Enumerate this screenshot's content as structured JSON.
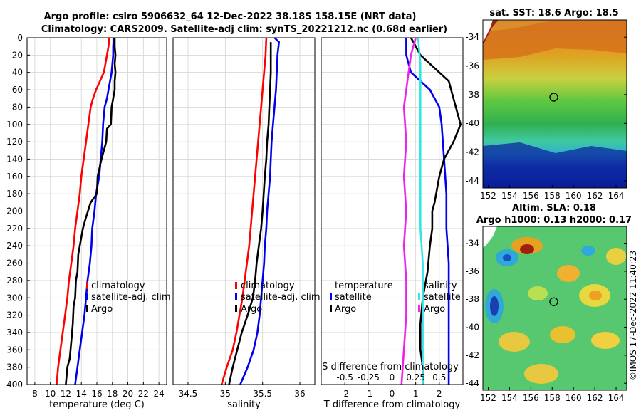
{
  "title": {
    "line1": "Argo profile: csiro 5906632_64 12-Dec-2022 38.18S 158.15E (NRT data)",
    "line2": "Climatology: CARS2009. Satellite-adj clim: synTS_20221212.nc (0.68d earlier)"
  },
  "credit": "©IMOS 17-Dec-2022 11:40:23",
  "colors": {
    "climatology": "#ff0000",
    "satellite": "#0000ee",
    "argo": "#000000",
    "salinity_diff": "#33e5e5",
    "salinity_sat": "#ee22ee"
  },
  "chart_data": [
    {
      "type": "line",
      "id": "temperature",
      "xlabel": "temperature (deg C)",
      "xlim": [
        7,
        25
      ],
      "xticks": [
        8,
        10,
        12,
        14,
        16,
        18,
        20,
        22,
        24
      ],
      "ylim": [
        0,
        400
      ],
      "yticks": [
        0,
        20,
        40,
        60,
        80,
        100,
        120,
        140,
        160,
        180,
        200,
        220,
        240,
        260,
        280,
        300,
        320,
        340,
        360,
        380,
        400
      ],
      "legend": [
        "climatology",
        "satellite-adj. clim",
        "Argo"
      ],
      "series": [
        {
          "name": "climatology",
          "points": [
            [
              17.6,
              0
            ],
            [
              17.5,
              10
            ],
            [
              17.3,
              20
            ],
            [
              17.1,
              30
            ],
            [
              16.9,
              40
            ],
            [
              16.4,
              50
            ],
            [
              15.9,
              60
            ],
            [
              15.5,
              70
            ],
            [
              15.2,
              80
            ],
            [
              14.9,
              100
            ],
            [
              14.6,
              120
            ],
            [
              14.3,
              140
            ],
            [
              14.0,
              160
            ],
            [
              13.8,
              180
            ],
            [
              13.5,
              200
            ],
            [
              13.2,
              220
            ],
            [
              13.0,
              240
            ],
            [
              12.7,
              260
            ],
            [
              12.4,
              280
            ],
            [
              12.2,
              300
            ],
            [
              11.9,
              320
            ],
            [
              11.6,
              340
            ],
            [
              11.3,
              360
            ],
            [
              11.0,
              380
            ],
            [
              10.8,
              400
            ]
          ]
        },
        {
          "name": "satellite-adj. clim",
          "points": [
            [
              18.2,
              0
            ],
            [
              18.1,
              10
            ],
            [
              18.1,
              20
            ],
            [
              18.0,
              30
            ],
            [
              17.9,
              40
            ],
            [
              17.7,
              50
            ],
            [
              17.5,
              60
            ],
            [
              17.3,
              70
            ],
            [
              17.0,
              80
            ],
            [
              16.8,
              100
            ],
            [
              16.7,
              120
            ],
            [
              16.5,
              140
            ],
            [
              16.3,
              160
            ],
            [
              15.9,
              180
            ],
            [
              15.7,
              200
            ],
            [
              15.4,
              220
            ],
            [
              15.3,
              240
            ],
            [
              15.1,
              260
            ],
            [
              14.8,
              280
            ],
            [
              14.6,
              300
            ],
            [
              14.4,
              320
            ],
            [
              14.1,
              340
            ],
            [
              13.8,
              360
            ],
            [
              13.5,
              380
            ],
            [
              13.2,
              400
            ]
          ]
        },
        {
          "name": "Argo",
          "points": [
            [
              18.3,
              0
            ],
            [
              18.3,
              10
            ],
            [
              18.4,
              20
            ],
            [
              18.3,
              30
            ],
            [
              18.4,
              40
            ],
            [
              18.3,
              50
            ],
            [
              18.3,
              60
            ],
            [
              18.1,
              70
            ],
            [
              17.9,
              80
            ],
            [
              17.8,
              100
            ],
            [
              17.3,
              105
            ],
            [
              17.2,
              120
            ],
            [
              16.6,
              140
            ],
            [
              16.1,
              160
            ],
            [
              16.0,
              180
            ],
            [
              15.2,
              190
            ],
            [
              14.5,
              210
            ],
            [
              14.2,
              220
            ],
            [
              13.8,
              240
            ],
            [
              13.6,
              250
            ],
            [
              13.5,
              270
            ],
            [
              13.3,
              280
            ],
            [
              13.2,
              300
            ],
            [
              13.0,
              310
            ],
            [
              12.9,
              330
            ],
            [
              12.7,
              350
            ],
            [
              12.5,
              370
            ],
            [
              12.2,
              380
            ],
            [
              12.1,
              390
            ],
            [
              12.0,
              400
            ]
          ]
        }
      ]
    },
    {
      "type": "line",
      "id": "salinity",
      "xlabel": "salinity",
      "xlim": [
        34.3,
        36.2
      ],
      "xticks": [
        34.5,
        35,
        35.5,
        36
      ],
      "xtick_labels": [
        "34.5",
        "35",
        "35.5",
        "36"
      ],
      "ylim": [
        0,
        400
      ],
      "legend": [
        "climatology",
        "satellite-adj. clim",
        "Argo"
      ],
      "series": [
        {
          "name": "climatology",
          "points": [
            [
              35.55,
              0
            ],
            [
              35.54,
              20
            ],
            [
              35.52,
              40
            ],
            [
              35.5,
              60
            ],
            [
              35.48,
              80
            ],
            [
              35.46,
              100
            ],
            [
              35.44,
              120
            ],
            [
              35.42,
              140
            ],
            [
              35.4,
              160
            ],
            [
              35.38,
              180
            ],
            [
              35.36,
              200
            ],
            [
              35.34,
              220
            ],
            [
              35.32,
              240
            ],
            [
              35.29,
              260
            ],
            [
              35.26,
              280
            ],
            [
              35.23,
              300
            ],
            [
              35.19,
              320
            ],
            [
              35.15,
              340
            ],
            [
              35.1,
              360
            ],
            [
              35.02,
              380
            ],
            [
              34.95,
              400
            ]
          ]
        },
        {
          "name": "satellite-adj. clim",
          "points": [
            [
              35.66,
              0
            ],
            [
              35.72,
              5
            ],
            [
              35.7,
              20
            ],
            [
              35.69,
              40
            ],
            [
              35.68,
              60
            ],
            [
              35.66,
              80
            ],
            [
              35.64,
              100
            ],
            [
              35.62,
              120
            ],
            [
              35.61,
              140
            ],
            [
              35.6,
              160
            ],
            [
              35.58,
              180
            ],
            [
              35.56,
              200
            ],
            [
              35.55,
              220
            ],
            [
              35.53,
              240
            ],
            [
              35.52,
              260
            ],
            [
              35.5,
              280
            ],
            [
              35.48,
              300
            ],
            [
              35.46,
              320
            ],
            [
              35.43,
              340
            ],
            [
              35.38,
              360
            ],
            [
              35.3,
              380
            ],
            [
              35.2,
              400
            ]
          ]
        },
        {
          "name": "Argo",
          "points": [
            [
              35.61,
              5
            ],
            [
              35.61,
              20
            ],
            [
              35.61,
              40
            ],
            [
              35.6,
              60
            ],
            [
              35.59,
              80
            ],
            [
              35.58,
              100
            ],
            [
              35.56,
              120
            ],
            [
              35.55,
              140
            ],
            [
              35.53,
              160
            ],
            [
              35.5,
              200
            ],
            [
              35.48,
              220
            ],
            [
              35.45,
              240
            ],
            [
              35.42,
              260
            ],
            [
              35.4,
              280
            ],
            [
              35.37,
              300
            ],
            [
              35.3,
              320
            ],
            [
              35.22,
              340
            ],
            [
              35.16,
              360
            ],
            [
              35.1,
              380
            ],
            [
              35.05,
              400
            ]
          ]
        }
      ]
    },
    {
      "type": "line",
      "id": "difference",
      "xlabel": "T difference from climatology",
      "xlabel2": "S difference from climatology",
      "xlim": [
        -3,
        3
      ],
      "xticks": [
        -2,
        -1,
        0,
        1,
        2
      ],
      "xtick_labels": [
        "-2",
        "-1",
        "0",
        "1",
        "2"
      ],
      "sticks": [
        -0.5,
        -0.25,
        0,
        0.25,
        0.5
      ],
      "stick_labels": [
        "-0.5",
        "-0.25",
        "0",
        "0.25",
        "0.5"
      ],
      "ylim": [
        0,
        400
      ],
      "legend_t_title": "temperature",
      "legend_s_title": "salinity",
      "legend_t": [
        "satellite",
        "Argo"
      ],
      "legend_s": [
        "satellite",
        "Argo"
      ],
      "series": [
        {
          "name": "T satellite",
          "points": [
            [
              0.6,
              0
            ],
            [
              0.6,
              20
            ],
            [
              0.8,
              40
            ],
            [
              1.6,
              60
            ],
            [
              2.0,
              80
            ],
            [
              2.1,
              100
            ],
            [
              2.2,
              140
            ],
            [
              2.3,
              180
            ],
            [
              2.3,
              220
            ],
            [
              2.4,
              260
            ],
            [
              2.4,
              300
            ],
            [
              2.4,
              340
            ],
            [
              2.4,
              380
            ],
            [
              2.4,
              400
            ]
          ]
        },
        {
          "name": "T Argo",
          "points": [
            [
              0.8,
              0
            ],
            [
              1.2,
              20
            ],
            [
              2.4,
              50
            ],
            [
              2.6,
              70
            ],
            [
              2.8,
              90
            ],
            [
              2.9,
              100
            ],
            [
              2.6,
              120
            ],
            [
              2.2,
              140
            ],
            [
              2.0,
              160
            ],
            [
              1.8,
              190
            ],
            [
              1.7,
              200
            ],
            [
              1.7,
              220
            ],
            [
              1.6,
              240
            ],
            [
              1.5,
              270
            ],
            [
              1.3,
              300
            ],
            [
              1.2,
              330
            ],
            [
              1.2,
              360
            ],
            [
              1.3,
              380
            ],
            [
              1.3,
              400
            ]
          ]
        },
        {
          "name": "S satellite",
          "points": [
            [
              1.1,
              0
            ],
            [
              1.2,
              30
            ],
            [
              1.2,
              60
            ],
            [
              1.2,
              100
            ],
            [
              1.2,
              140
            ],
            [
              1.2,
              180
            ],
            [
              1.2,
              220
            ],
            [
              1.3,
              260
            ],
            [
              1.3,
              300
            ],
            [
              1.3,
              340
            ],
            [
              1.3,
              380
            ],
            [
              1.3,
              400
            ]
          ]
        },
        {
          "name": "S Argo",
          "points": [
            [
              1.0,
              0
            ],
            [
              0.8,
              20
            ],
            [
              0.7,
              40
            ],
            [
              0.5,
              80
            ],
            [
              0.6,
              120
            ],
            [
              0.5,
              160
            ],
            [
              0.6,
              200
            ],
            [
              0.5,
              240
            ],
            [
              0.6,
              280
            ],
            [
              0.6,
              320
            ],
            [
              0.5,
              360
            ],
            [
              0.4,
              400
            ]
          ]
        }
      ]
    },
    {
      "type": "heatmap",
      "id": "sst-map",
      "title": "sat. SST: 18.6 Argo: 18.5",
      "xticks": [
        152,
        154,
        156,
        158,
        160,
        162,
        164
      ],
      "yticks": [
        -34,
        -36,
        -38,
        -40,
        -42,
        -44
      ],
      "xlim": [
        151.5,
        165
      ],
      "ylim": [
        -44.5,
        -32.8
      ],
      "marker": [
        158.15,
        -38.18
      ]
    },
    {
      "type": "heatmap",
      "id": "sla-map",
      "title1": "Altim. SLA: 0.18",
      "title2": "Argo h1000: 0.13 h2000: 0.17",
      "xticks": [
        152,
        154,
        156,
        158,
        160,
        162,
        164
      ],
      "yticks": [
        -34,
        -36,
        -38,
        -40,
        -42,
        -44
      ],
      "xlim": [
        151.5,
        165
      ],
      "ylim": [
        -44.5,
        -32.8
      ],
      "marker": [
        158.15,
        -38.18
      ]
    }
  ]
}
